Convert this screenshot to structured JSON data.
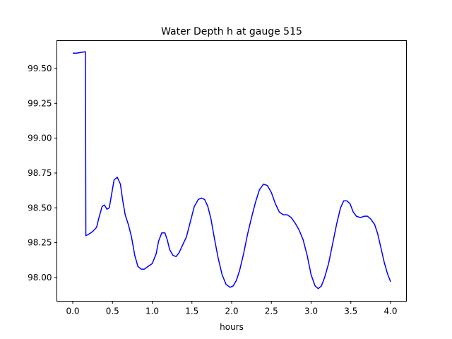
{
  "chart_data": {
    "type": "line",
    "title": "Water Depth h at gauge 515",
    "xlabel": "hours",
    "ylabel": "",
    "xlim": [
      -0.2,
      4.2
    ],
    "ylim": [
      97.83,
      99.7
    ],
    "xticks": [
      0.0,
      0.5,
      1.0,
      1.5,
      2.0,
      2.5,
      3.0,
      3.5,
      4.0
    ],
    "xtick_labels": [
      "0.0",
      "0.5",
      "1.0",
      "1.5",
      "2.0",
      "2.5",
      "3.0",
      "3.5",
      "4.0"
    ],
    "yticks": [
      98.0,
      98.25,
      98.5,
      98.75,
      99.0,
      99.25,
      99.5
    ],
    "ytick_labels": [
      "98.00",
      "98.25",
      "98.50",
      "98.75",
      "99.00",
      "99.25",
      "99.50"
    ],
    "grid": false,
    "color": "#0000ff",
    "series": [
      {
        "name": "",
        "x": [
          0.0,
          0.05,
          0.1,
          0.16,
          0.165,
          0.2,
          0.25,
          0.3,
          0.33,
          0.37,
          0.4,
          0.43,
          0.46,
          0.49,
          0.52,
          0.56,
          0.6,
          0.63,
          0.66,
          0.7,
          0.74,
          0.78,
          0.82,
          0.86,
          0.9,
          0.95,
          1.0,
          1.05,
          1.08,
          1.12,
          1.16,
          1.19,
          1.22,
          1.26,
          1.3,
          1.34,
          1.38,
          1.43,
          1.48,
          1.53,
          1.58,
          1.62,
          1.66,
          1.7,
          1.74,
          1.78,
          1.83,
          1.88,
          1.93,
          1.98,
          2.02,
          2.06,
          2.1,
          2.15,
          2.2,
          2.25,
          2.3,
          2.35,
          2.4,
          2.45,
          2.5,
          2.55,
          2.6,
          2.65,
          2.7,
          2.75,
          2.8,
          2.85,
          2.9,
          2.95,
          3.0,
          3.05,
          3.09,
          3.13,
          3.17,
          3.22,
          3.27,
          3.32,
          3.37,
          3.41,
          3.45,
          3.49,
          3.53,
          3.57,
          3.62,
          3.67,
          3.71,
          3.75,
          3.8,
          3.84,
          3.88,
          3.92,
          3.96,
          4.0
        ],
        "y": [
          99.61,
          99.61,
          99.615,
          99.62,
          98.3,
          98.31,
          98.33,
          98.36,
          98.43,
          98.51,
          98.52,
          98.49,
          98.5,
          98.6,
          98.7,
          98.72,
          98.67,
          98.55,
          98.45,
          98.38,
          98.29,
          98.16,
          98.08,
          98.06,
          98.06,
          98.08,
          98.1,
          98.17,
          98.26,
          98.32,
          98.32,
          98.27,
          98.2,
          98.16,
          98.15,
          98.18,
          98.23,
          98.29,
          98.4,
          98.51,
          98.56,
          98.57,
          98.56,
          98.51,
          98.42,
          98.29,
          98.14,
          98.02,
          97.95,
          97.93,
          97.94,
          97.98,
          98.05,
          98.17,
          98.31,
          98.43,
          98.54,
          98.63,
          98.67,
          98.66,
          98.61,
          98.53,
          98.47,
          98.45,
          98.45,
          98.43,
          98.39,
          98.34,
          98.27,
          98.16,
          98.02,
          97.94,
          97.92,
          97.94,
          98.0,
          98.1,
          98.24,
          98.38,
          98.5,
          98.55,
          98.55,
          98.53,
          98.47,
          98.44,
          98.43,
          98.44,
          98.44,
          98.42,
          98.38,
          98.31,
          98.21,
          98.11,
          98.03,
          97.97
        ]
      }
    ]
  }
}
